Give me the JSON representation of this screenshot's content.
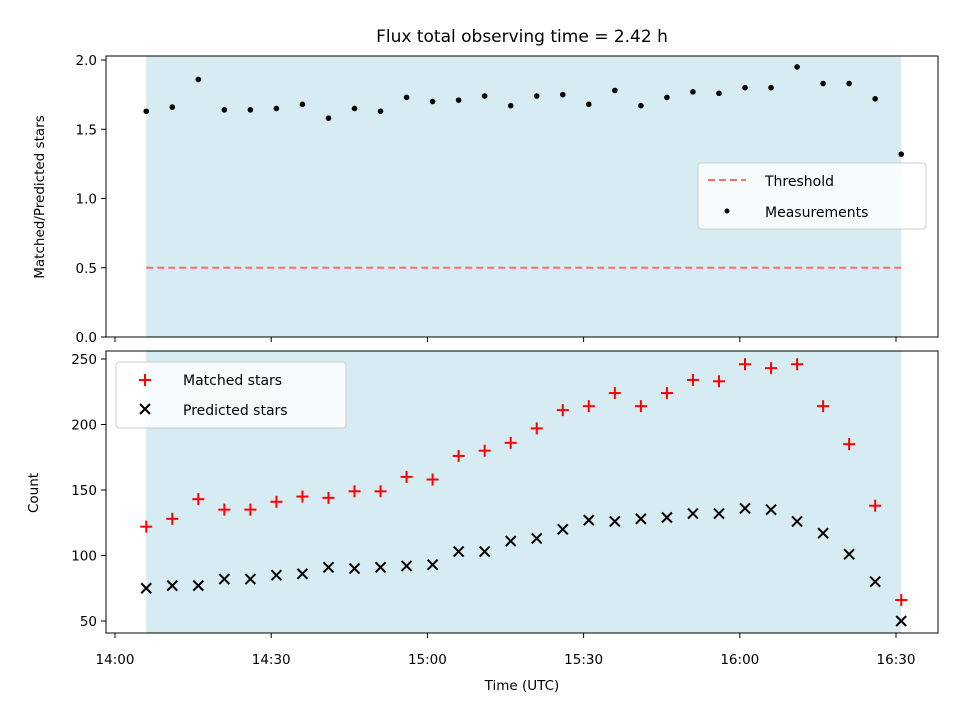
{
  "chart_data": [
    {
      "type": "scatter",
      "title": "Flux total observing time = 2.42 h",
      "xlabel": "",
      "ylabel": "Matched/Predicted stars",
      "ylim": [
        0,
        2.0
      ],
      "yticks": [
        "0.0",
        "0.5",
        "1.0",
        "1.5",
        "2.0"
      ],
      "legend_position": "center-right",
      "threshold": {
        "name": "Threshold",
        "value": 0.5,
        "color": "#ff6a6a"
      },
      "measurements_name": "Measurements",
      "x": [
        "14:06",
        "14:11",
        "14:16",
        "14:21",
        "14:26",
        "14:31",
        "14:36",
        "14:41",
        "14:46",
        "14:51",
        "14:56",
        "15:01",
        "15:06",
        "15:11",
        "15:16",
        "15:21",
        "15:26",
        "15:31",
        "15:36",
        "15:41",
        "15:46",
        "15:51",
        "15:56",
        "16:01",
        "16:06",
        "16:11",
        "16:16",
        "16:21",
        "16:26",
        "16:31"
      ],
      "values": [
        1.63,
        1.66,
        1.86,
        1.64,
        1.64,
        1.65,
        1.68,
        1.58,
        1.65,
        1.63,
        1.73,
        1.7,
        1.71,
        1.74,
        1.67,
        1.74,
        1.75,
        1.68,
        1.78,
        1.67,
        1.73,
        1.77,
        1.76,
        1.8,
        1.8,
        1.95,
        1.83,
        1.83,
        1.72,
        1.32
      ],
      "shaded_span": [
        "14:06",
        "16:31"
      ],
      "shade_color": "#add8e6"
    },
    {
      "type": "scatter",
      "xlabel": "Time (UTC)",
      "ylabel": "Count",
      "ylim": [
        40,
        255
      ],
      "yticks": [
        "50",
        "100",
        "150",
        "200",
        "250"
      ],
      "xticks": [
        "14:00",
        "14:30",
        "15:00",
        "15:30",
        "16:00",
        "16:30"
      ],
      "legend_position": "top-left",
      "x": [
        "14:06",
        "14:11",
        "14:16",
        "14:21",
        "14:26",
        "14:31",
        "14:36",
        "14:41",
        "14:46",
        "14:51",
        "14:56",
        "15:01",
        "15:06",
        "15:11",
        "15:16",
        "15:21",
        "15:26",
        "15:31",
        "15:36",
        "15:41",
        "15:46",
        "15:51",
        "15:56",
        "16:01",
        "16:06",
        "16:11",
        "16:16",
        "16:21",
        "16:26",
        "16:31"
      ],
      "series": [
        {
          "name": "Matched stars",
          "marker": "+",
          "color": "#ff0000",
          "values": [
            122,
            128,
            143,
            135,
            135,
            141,
            145,
            144,
            149,
            149,
            160,
            158,
            176,
            180,
            186,
            197,
            211,
            214,
            224,
            214,
            224,
            234,
            233,
            246,
            243,
            246,
            214,
            185,
            138,
            66
          ]
        },
        {
          "name": "Predicted stars",
          "marker": "x",
          "color": "#000000",
          "values": [
            75,
            77,
            77,
            82,
            82,
            85,
            86,
            91,
            90,
            91,
            92,
            93,
            103,
            103,
            111,
            113,
            120,
            127,
            126,
            128,
            129,
            132,
            132,
            136,
            135,
            126,
            117,
            101,
            80,
            50
          ]
        }
      ],
      "shaded_span": [
        "14:06",
        "16:31"
      ],
      "shade_color": "#add8e6"
    }
  ]
}
